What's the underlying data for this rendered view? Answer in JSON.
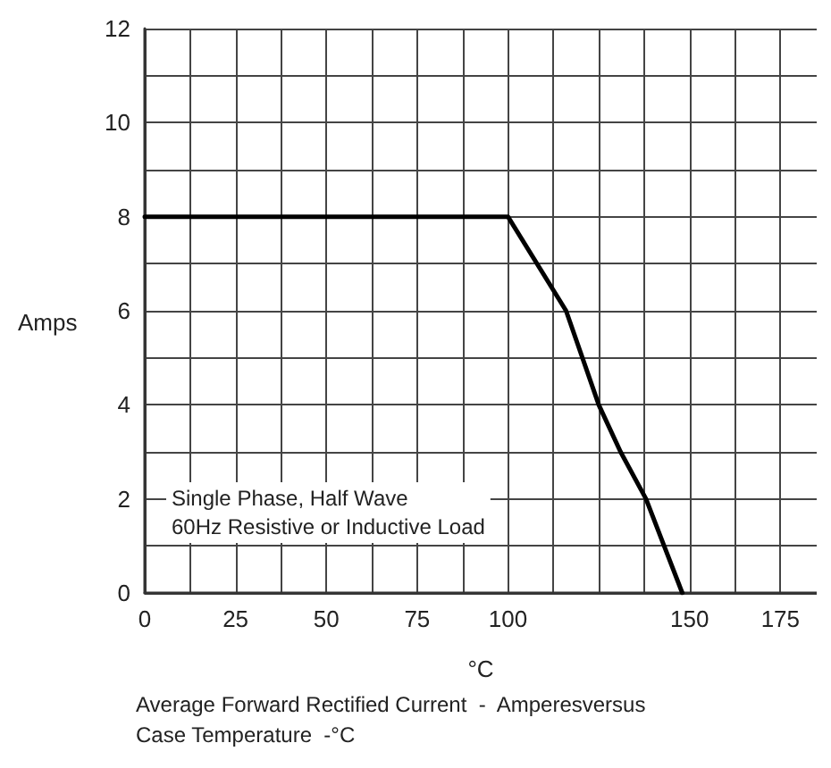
{
  "chart_data": {
    "type": "line",
    "title": "Average Forward Rectified Current  -  Amperesversus\nCase Temperature  -°C",
    "xlabel": "°C",
    "ylabel": "Amps",
    "annotations": [
      "Single Phase, Half Wave\n60Hz Resistive or Inductive Load"
    ],
    "x": [
      0,
      100,
      116,
      125,
      131,
      138,
      143,
      148
    ],
    "series": [
      {
        "color": "#000000",
        "values": [
          8,
          8,
          6,
          4,
          3,
          2,
          1,
          0
        ]
      }
    ],
    "xlim": [
      0,
      185
    ],
    "xticks": [
      0,
      25,
      50,
      75,
      100,
      150,
      175
    ],
    "ylim": [
      0,
      12
    ],
    "yticks": [
      0,
      2,
      4,
      6,
      8,
      10,
      12
    ],
    "grid": true,
    "marker": "none",
    "line_style": "solid"
  }
}
